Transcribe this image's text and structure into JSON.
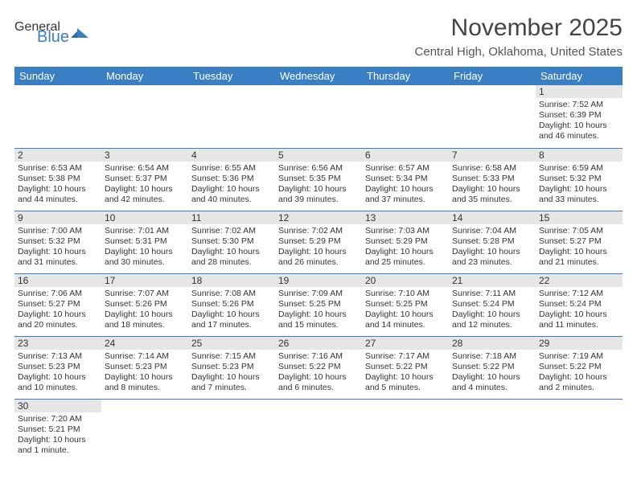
{
  "logo": {
    "text1": "General",
    "text2": "Blue",
    "accent_color": "#3a7fc4"
  },
  "title": "November 2025",
  "location": "Central High, Oklahoma, United States",
  "header_bg": "#3a7fc4",
  "daynum_bg": "#e6e6e6",
  "border_color": "#3a7fc4",
  "days": [
    "Sunday",
    "Monday",
    "Tuesday",
    "Wednesday",
    "Thursday",
    "Friday",
    "Saturday"
  ],
  "weeks": [
    [
      {
        "n": "",
        "lines": []
      },
      {
        "n": "",
        "lines": []
      },
      {
        "n": "",
        "lines": []
      },
      {
        "n": "",
        "lines": []
      },
      {
        "n": "",
        "lines": []
      },
      {
        "n": "",
        "lines": []
      },
      {
        "n": "1",
        "lines": [
          "Sunrise: 7:52 AM",
          "Sunset: 6:39 PM",
          "Daylight: 10 hours and 46 minutes."
        ]
      }
    ],
    [
      {
        "n": "2",
        "lines": [
          "Sunrise: 6:53 AM",
          "Sunset: 5:38 PM",
          "Daylight: 10 hours and 44 minutes."
        ]
      },
      {
        "n": "3",
        "lines": [
          "Sunrise: 6:54 AM",
          "Sunset: 5:37 PM",
          "Daylight: 10 hours and 42 minutes."
        ]
      },
      {
        "n": "4",
        "lines": [
          "Sunrise: 6:55 AM",
          "Sunset: 5:36 PM",
          "Daylight: 10 hours and 40 minutes."
        ]
      },
      {
        "n": "5",
        "lines": [
          "Sunrise: 6:56 AM",
          "Sunset: 5:35 PM",
          "Daylight: 10 hours and 39 minutes."
        ]
      },
      {
        "n": "6",
        "lines": [
          "Sunrise: 6:57 AM",
          "Sunset: 5:34 PM",
          "Daylight: 10 hours and 37 minutes."
        ]
      },
      {
        "n": "7",
        "lines": [
          "Sunrise: 6:58 AM",
          "Sunset: 5:33 PM",
          "Daylight: 10 hours and 35 minutes."
        ]
      },
      {
        "n": "8",
        "lines": [
          "Sunrise: 6:59 AM",
          "Sunset: 5:32 PM",
          "Daylight: 10 hours and 33 minutes."
        ]
      }
    ],
    [
      {
        "n": "9",
        "lines": [
          "Sunrise: 7:00 AM",
          "Sunset: 5:32 PM",
          "Daylight: 10 hours and 31 minutes."
        ]
      },
      {
        "n": "10",
        "lines": [
          "Sunrise: 7:01 AM",
          "Sunset: 5:31 PM",
          "Daylight: 10 hours and 30 minutes."
        ]
      },
      {
        "n": "11",
        "lines": [
          "Sunrise: 7:02 AM",
          "Sunset: 5:30 PM",
          "Daylight: 10 hours and 28 minutes."
        ]
      },
      {
        "n": "12",
        "lines": [
          "Sunrise: 7:02 AM",
          "Sunset: 5:29 PM",
          "Daylight: 10 hours and 26 minutes."
        ]
      },
      {
        "n": "13",
        "lines": [
          "Sunrise: 7:03 AM",
          "Sunset: 5:29 PM",
          "Daylight: 10 hours and 25 minutes."
        ]
      },
      {
        "n": "14",
        "lines": [
          "Sunrise: 7:04 AM",
          "Sunset: 5:28 PM",
          "Daylight: 10 hours and 23 minutes."
        ]
      },
      {
        "n": "15",
        "lines": [
          "Sunrise: 7:05 AM",
          "Sunset: 5:27 PM",
          "Daylight: 10 hours and 21 minutes."
        ]
      }
    ],
    [
      {
        "n": "16",
        "lines": [
          "Sunrise: 7:06 AM",
          "Sunset: 5:27 PM",
          "Daylight: 10 hours and 20 minutes."
        ]
      },
      {
        "n": "17",
        "lines": [
          "Sunrise: 7:07 AM",
          "Sunset: 5:26 PM",
          "Daylight: 10 hours and 18 minutes."
        ]
      },
      {
        "n": "18",
        "lines": [
          "Sunrise: 7:08 AM",
          "Sunset: 5:26 PM",
          "Daylight: 10 hours and 17 minutes."
        ]
      },
      {
        "n": "19",
        "lines": [
          "Sunrise: 7:09 AM",
          "Sunset: 5:25 PM",
          "Daylight: 10 hours and 15 minutes."
        ]
      },
      {
        "n": "20",
        "lines": [
          "Sunrise: 7:10 AM",
          "Sunset: 5:25 PM",
          "Daylight: 10 hours and 14 minutes."
        ]
      },
      {
        "n": "21",
        "lines": [
          "Sunrise: 7:11 AM",
          "Sunset: 5:24 PM",
          "Daylight: 10 hours and 12 minutes."
        ]
      },
      {
        "n": "22",
        "lines": [
          "Sunrise: 7:12 AM",
          "Sunset: 5:24 PM",
          "Daylight: 10 hours and 11 minutes."
        ]
      }
    ],
    [
      {
        "n": "23",
        "lines": [
          "Sunrise: 7:13 AM",
          "Sunset: 5:23 PM",
          "Daylight: 10 hours and 10 minutes."
        ]
      },
      {
        "n": "24",
        "lines": [
          "Sunrise: 7:14 AM",
          "Sunset: 5:23 PM",
          "Daylight: 10 hours and 8 minutes."
        ]
      },
      {
        "n": "25",
        "lines": [
          "Sunrise: 7:15 AM",
          "Sunset: 5:23 PM",
          "Daylight: 10 hours and 7 minutes."
        ]
      },
      {
        "n": "26",
        "lines": [
          "Sunrise: 7:16 AM",
          "Sunset: 5:22 PM",
          "Daylight: 10 hours and 6 minutes."
        ]
      },
      {
        "n": "27",
        "lines": [
          "Sunrise: 7:17 AM",
          "Sunset: 5:22 PM",
          "Daylight: 10 hours and 5 minutes."
        ]
      },
      {
        "n": "28",
        "lines": [
          "Sunrise: 7:18 AM",
          "Sunset: 5:22 PM",
          "Daylight: 10 hours and 4 minutes."
        ]
      },
      {
        "n": "29",
        "lines": [
          "Sunrise: 7:19 AM",
          "Sunset: 5:22 PM",
          "Daylight: 10 hours and 2 minutes."
        ]
      }
    ],
    [
      {
        "n": "30",
        "lines": [
          "Sunrise: 7:20 AM",
          "Sunset: 5:21 PM",
          "Daylight: 10 hours and 1 minute."
        ]
      },
      {
        "n": "",
        "lines": []
      },
      {
        "n": "",
        "lines": []
      },
      {
        "n": "",
        "lines": []
      },
      {
        "n": "",
        "lines": []
      },
      {
        "n": "",
        "lines": []
      },
      {
        "n": "",
        "lines": []
      }
    ]
  ]
}
